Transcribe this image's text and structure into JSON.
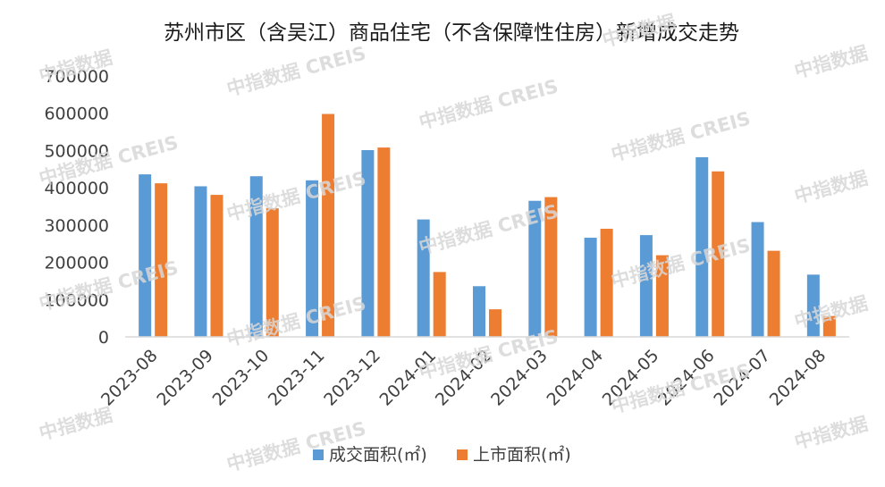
{
  "colors": {
    "series_1": "#5B9BD5",
    "series_2": "#ED7D31",
    "axis": "#d9d9d9",
    "text": "#404040",
    "title": "#1a1a1a",
    "watermark": "#d8d8d8"
  },
  "watermark": {
    "text_short": "中指数据",
    "text_long": "中指数据 CREIS"
  },
  "chart_data": {
    "type": "bar",
    "title": "苏州市区（含吴江）商品住宅（不含保障性住房）新增成交走势",
    "xlabel": "",
    "ylabel": "",
    "ylim": [
      0,
      700000
    ],
    "yticks": [
      0,
      100000,
      200000,
      300000,
      400000,
      500000,
      600000,
      700000
    ],
    "grid": false,
    "legend_position": "bottom",
    "categories": [
      "2023-08",
      "2023-09",
      "2023-10",
      "2023-11",
      "2023-12",
      "2024-01",
      "2024-02",
      "2024-03",
      "2024-04",
      "2024-05",
      "2024-06",
      "2024-07",
      "2024-08"
    ],
    "series": [
      {
        "name": "成交面积(㎡)",
        "values": [
          436000,
          404000,
          431000,
          420000,
          501000,
          315000,
          136000,
          365000,
          266000,
          273000,
          482000,
          308000,
          167000
        ]
      },
      {
        "name": "上市面积(㎡)",
        "values": [
          412000,
          381000,
          345000,
          598000,
          508000,
          174000,
          74000,
          375000,
          290000,
          219000,
          444000,
          231000,
          56000
        ]
      }
    ]
  }
}
